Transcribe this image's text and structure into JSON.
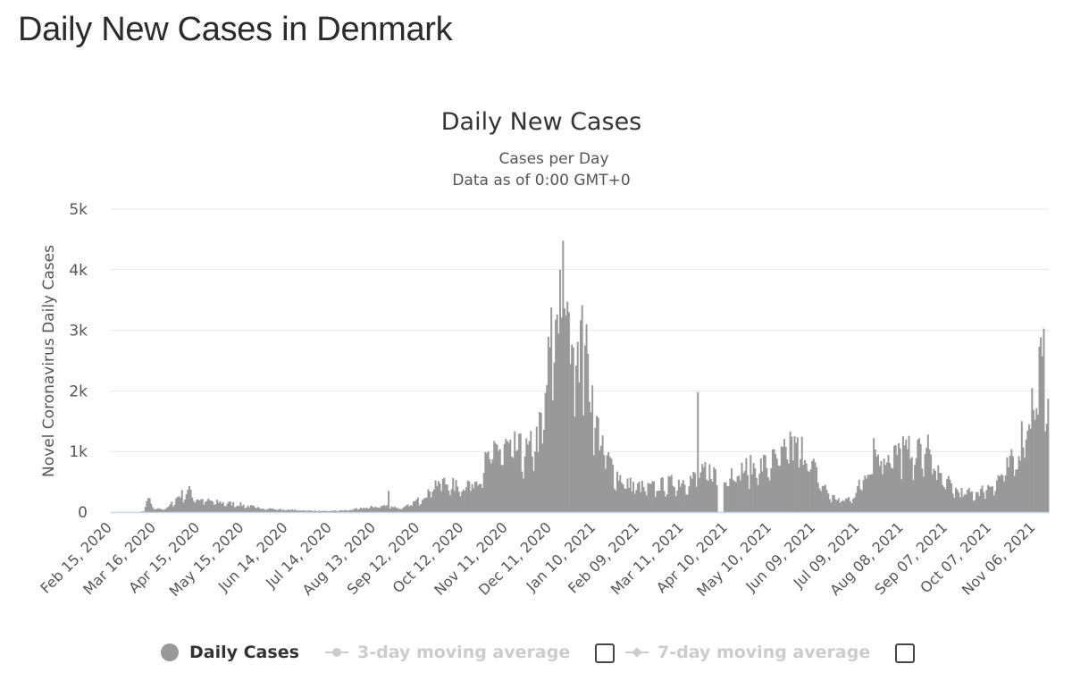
{
  "page": {
    "title": "Daily New Cases in Denmark"
  },
  "colors": {
    "bar": "#999999",
    "grid": "#e6e6e6",
    "axis_line": "#c8d7e6",
    "legend_inactive": "#cccccc",
    "text": "#333333"
  },
  "legend": {
    "daily_cases": "Daily Cases",
    "avg3": "3-day moving average",
    "avg7": "7-day moving average"
  },
  "chart_data": {
    "type": "bar",
    "title": "Daily New Cases",
    "subtitle_1": "Cases per Day",
    "subtitle_2": "Data as of 0:00 GMT+0",
    "ylabel": "Novel Coronavirus Daily Cases",
    "xlabel": "",
    "ylim": [
      0,
      5000
    ],
    "y_ticks": [
      0,
      1000,
      2000,
      3000,
      4000,
      5000
    ],
    "y_tick_labels": [
      "0",
      "1k",
      "2k",
      "3k",
      "4k",
      "5k"
    ],
    "x_start": "2020-02-15",
    "x_end": "2021-11-15",
    "x_tick_labels": [
      "Feb 15, 2020",
      "Mar 16, 2020",
      "Apr 15, 2020",
      "May 15, 2020",
      "Jun 14, 2020",
      "Jul 14, 2020",
      "Aug 13, 2020",
      "Sep 12, 2020",
      "Oct 12, 2020",
      "Nov 11, 2020",
      "Dec 11, 2020",
      "Jan 10, 2021",
      "Feb 09, 2021",
      "Mar 11, 2021",
      "Apr 10, 2021",
      "May 10, 2021",
      "Jun 09, 2021",
      "Jul 09, 2021",
      "Aug 08, 2021",
      "Sep 07, 2021",
      "Oct 07, 2021",
      "Nov 06, 2021"
    ],
    "series": [
      {
        "name": "Daily Cases",
        "anchors": [
          [
            "2020-02-15",
            0
          ],
          [
            "2020-03-05",
            0
          ],
          [
            "2020-03-08",
            20
          ],
          [
            "2020-03-11",
            200
          ],
          [
            "2020-03-15",
            50
          ],
          [
            "2020-03-24",
            60
          ],
          [
            "2020-04-01",
            260
          ],
          [
            "2020-04-08",
            330
          ],
          [
            "2020-04-13",
            210
          ],
          [
            "2020-04-25",
            160
          ],
          [
            "2020-05-10",
            130
          ],
          [
            "2020-05-25",
            70
          ],
          [
            "2020-06-10",
            40
          ],
          [
            "2020-07-10",
            15
          ],
          [
            "2020-07-25",
            30
          ],
          [
            "2020-08-10",
            80
          ],
          [
            "2020-08-20",
            100
          ],
          [
            "2020-09-01",
            60
          ],
          [
            "2020-09-12",
            200
          ],
          [
            "2020-09-25",
            500
          ],
          [
            "2020-10-08",
            400
          ],
          [
            "2020-10-20",
            500
          ],
          [
            "2020-10-28",
            800
          ],
          [
            "2020-11-05",
            1050
          ],
          [
            "2020-11-15",
            1000
          ],
          [
            "2020-11-25",
            950
          ],
          [
            "2020-12-01",
            1150
          ],
          [
            "2020-12-05",
            1400
          ],
          [
            "2020-12-10",
            2500
          ],
          [
            "2020-12-15",
            3300
          ],
          [
            "2020-12-18",
            3600
          ],
          [
            "2020-12-20",
            3800
          ],
          [
            "2020-12-22",
            3000
          ],
          [
            "2020-12-28",
            2900
          ],
          [
            "2021-01-02",
            2600
          ],
          [
            "2021-01-07",
            2000
          ],
          [
            "2021-01-12",
            1300
          ],
          [
            "2021-01-18",
            850
          ],
          [
            "2021-01-25",
            600
          ],
          [
            "2021-02-01",
            450
          ],
          [
            "2021-02-15",
            380
          ],
          [
            "2021-02-28",
            450
          ],
          [
            "2021-03-10",
            500
          ],
          [
            "2021-03-20",
            550
          ],
          [
            "2021-03-28",
            650
          ],
          [
            "2021-04-06",
            600
          ],
          [
            "2021-04-15",
            650
          ],
          [
            "2021-04-25",
            700
          ],
          [
            "2021-05-05",
            750
          ],
          [
            "2021-05-15",
            850
          ],
          [
            "2021-05-25",
            1000
          ],
          [
            "2021-06-01",
            1000
          ],
          [
            "2021-06-05",
            850
          ],
          [
            "2021-06-12",
            500
          ],
          [
            "2021-06-20",
            250
          ],
          [
            "2021-06-28",
            180
          ],
          [
            "2021-07-05",
            250
          ],
          [
            "2021-07-12",
            550
          ],
          [
            "2021-07-18",
            900
          ],
          [
            "2021-07-25",
            950
          ],
          [
            "2021-08-05",
            900
          ],
          [
            "2021-08-12",
            950
          ],
          [
            "2021-08-20",
            950
          ],
          [
            "2021-08-28",
            800
          ],
          [
            "2021-09-05",
            500
          ],
          [
            "2021-09-15",
            320
          ],
          [
            "2021-09-25",
            300
          ],
          [
            "2021-10-05",
            400
          ],
          [
            "2021-10-15",
            600
          ],
          [
            "2021-10-25",
            900
          ],
          [
            "2021-10-30",
            1400
          ],
          [
            "2021-11-04",
            1700
          ],
          [
            "2021-11-09",
            2200
          ],
          [
            "2021-11-15",
            2400
          ]
        ],
        "spikes": [
          [
            "2020-03-12",
            230
          ],
          [
            "2020-04-09",
            370
          ],
          [
            "2020-08-22",
            350
          ],
          [
            "2020-12-19",
            4480
          ],
          [
            "2020-12-17",
            4000
          ],
          [
            "2020-12-23",
            3300
          ],
          [
            "2021-01-03",
            2750
          ],
          [
            "2021-03-21",
            1980
          ],
          [
            "2021-04-04",
            0
          ],
          [
            "2021-04-05",
            0
          ],
          [
            "2021-04-06",
            0
          ],
          [
            "2021-04-07",
            0
          ],
          [
            "2021-05-23",
            1330
          ],
          [
            "2021-07-19",
            1220
          ],
          [
            "2021-08-08",
            1250
          ],
          [
            "2021-08-25",
            1280
          ],
          [
            "2021-11-11",
            2570
          ]
        ],
        "noise_seed": 7,
        "noise_amplitude": 0.28
      }
    ]
  }
}
